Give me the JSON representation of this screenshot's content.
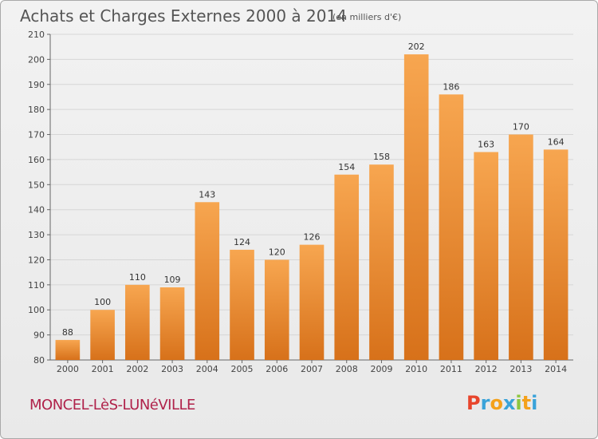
{
  "title": "Achats et Charges Externes 2000 à 2014",
  "subtitle": "(en milliers d'€)",
  "location": "MONCEL-LèS-LUNéVILLE",
  "logo": {
    "letters": [
      "P",
      "r",
      "o",
      "x",
      "i",
      "t",
      "i"
    ],
    "colors": [
      "#e8452c",
      "#3aa3d9",
      "#f4a11b",
      "#3aa3d9",
      "#8dc63f",
      "#f4a11b",
      "#3aa3d9"
    ]
  },
  "colors": {
    "bar_light": "#f7a650",
    "bar_dark": "#d7711a",
    "grid": "#d6d6d6"
  },
  "chart_data": {
    "type": "bar",
    "title": "Achats et Charges Externes 2000 à 2014",
    "subtitle": "(en milliers d'€)",
    "xlabel": "",
    "ylabel": "",
    "categories": [
      "2000",
      "2001",
      "2002",
      "2003",
      "2004",
      "2005",
      "2006",
      "2007",
      "2008",
      "2009",
      "2010",
      "2011",
      "2012",
      "2013",
      "2014"
    ],
    "values": [
      88,
      100,
      110,
      109,
      143,
      124,
      120,
      126,
      154,
      158,
      202,
      186,
      163,
      170,
      164
    ],
    "ylim": [
      80,
      210
    ],
    "yticks": [
      80,
      90,
      100,
      110,
      120,
      130,
      140,
      150,
      160,
      170,
      180,
      190,
      200,
      210
    ],
    "grid": true,
    "legend": "none"
  }
}
